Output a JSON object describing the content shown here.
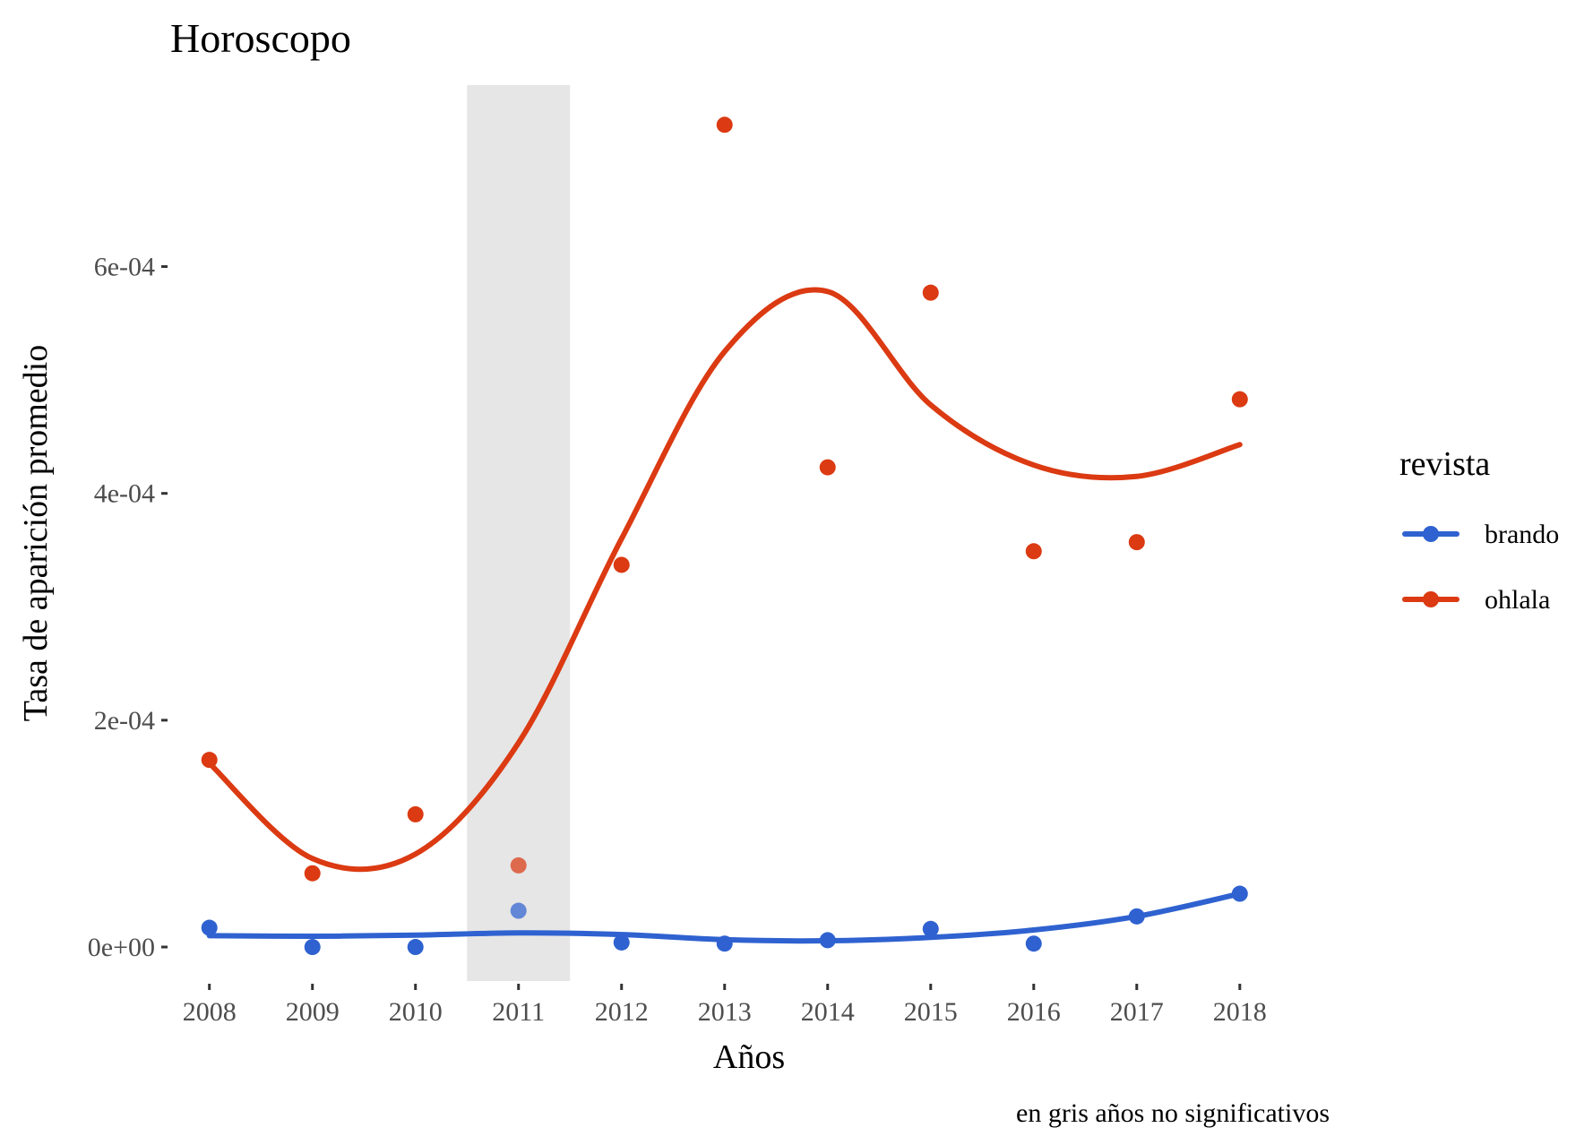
{
  "chart_data": {
    "type": "line",
    "title": "Horoscopo",
    "xlabel": "Años",
    "ylabel": "Tasa de aparición promedio",
    "caption": "en gris años no significativos",
    "x": [
      2008,
      2009,
      2010,
      2011,
      2012,
      2013,
      2014,
      2015,
      2016,
      2017,
      2018
    ],
    "x_tick_labels": [
      "2008",
      "2009",
      "2010",
      "2011",
      "2012",
      "2013",
      "2014",
      "2015",
      "2016",
      "2017",
      "2018"
    ],
    "xlim": [
      2007.62,
      2018.68
    ],
    "ylim": [
      -3e-05,
      0.00076
    ],
    "y_ticks": [
      0,
      0.0002,
      0.0004,
      0.0006
    ],
    "y_tick_labels": [
      "0e+00",
      "2e-04",
      "4e-04",
      "6e-04"
    ],
    "grid": false,
    "legend": {
      "title": "revista",
      "position": "right"
    },
    "shaded_regions": [
      {
        "x_range": [
          2010.5,
          2011.5
        ],
        "color": "#e6e6e6",
        "meaning": "no significativo"
      }
    ],
    "series": [
      {
        "name": "brando",
        "color": "#2f62d0",
        "points": [
          1.7e-05,
          0.0,
          0.0,
          3.2e-05,
          4e-06,
          3e-06,
          6e-06,
          1.6e-05,
          3e-06,
          2.7e-05,
          4.7e-05
        ],
        "smooth": [
          1e-05,
          9.5e-06,
          1.05e-05,
          1.25e-05,
          1.1e-05,
          6.5e-06,
          5.5e-06,
          8.5e-06,
          1.5e-05,
          2.7e-05,
          4.7e-05
        ]
      },
      {
        "name": "ohlala",
        "color": "#db3a12",
        "points": [
          0.000165,
          6.5e-05,
          0.000117,
          7.2e-05,
          0.000337,
          0.000725,
          0.000423,
          0.000577,
          0.000349,
          0.000357,
          0.000483
        ],
        "smooth": [
          0.000162,
          7.8e-05,
          8.2e-05,
          0.00018,
          0.00036,
          0.000525,
          0.000578,
          0.000478,
          0.000425,
          0.000415,
          0.000443
        ]
      }
    ]
  }
}
